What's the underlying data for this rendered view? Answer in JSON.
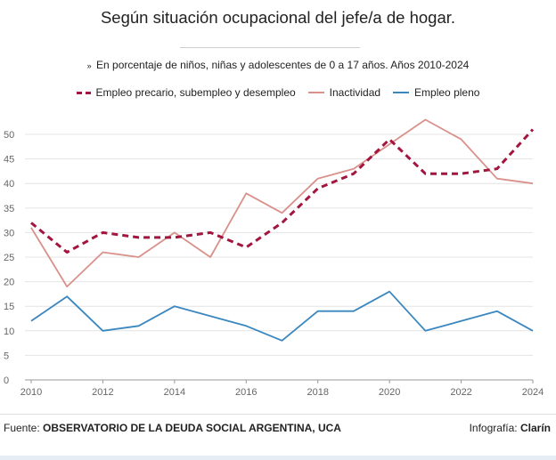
{
  "header": {
    "title": "Según situación ocupacional del jefe/a de hogar.",
    "subtitle_marker": "»",
    "subtitle": "En porcentaje de niños, niñas y adolescentes de 0 a 17 años. Años 2010-2024"
  },
  "footer": {
    "source_label": "Fuente:",
    "source_value": "OBSERVATORIO DE LA DEUDA SOCIAL ARGENTINA, UCA",
    "credit_label": "Infografía:",
    "credit_value": "Clarín"
  },
  "colors": {
    "precario": "#a3153f",
    "inactividad": "#d9918b",
    "pleno": "#3a87c0",
    "grid": "#e4e4e4",
    "axis": "#999999"
  },
  "chart_data": {
    "type": "line",
    "title": "Según situación ocupacional del jefe/a de hogar.",
    "subtitle": "En porcentaje de niños, niñas y adolescentes de 0 a 17 años. Años 2010-2024",
    "x": [
      2010,
      2011,
      2012,
      2013,
      2014,
      2015,
      2016,
      2017,
      2018,
      2019,
      2020,
      2021,
      2022,
      2023,
      2024
    ],
    "x_ticks": [
      2010,
      2012,
      2014,
      2016,
      2018,
      2020,
      2022,
      2024
    ],
    "y_ticks": [
      0,
      5,
      10,
      15,
      20,
      25,
      30,
      35,
      40,
      45,
      50
    ],
    "xlim": [
      2010,
      2024
    ],
    "ylim": [
      0,
      52
    ],
    "grid": "horizontal",
    "legend_position": "top",
    "series": [
      {
        "name": "Empleo precario, subempleo y desempleo",
        "style": "dashed",
        "values": [
          32,
          26,
          30,
          29,
          29,
          30,
          27,
          32,
          39,
          42,
          49,
          42,
          42,
          43,
          51
        ]
      },
      {
        "name": "Inactividad",
        "style": "solid",
        "values": [
          31,
          19,
          26,
          25,
          30,
          25,
          38,
          34,
          41,
          43,
          48,
          53,
          49,
          41,
          40
        ]
      },
      {
        "name": "Empleo pleno",
        "style": "solid",
        "values": [
          12,
          17,
          10,
          11,
          15,
          13,
          11,
          8,
          14,
          14,
          18,
          10,
          12,
          14,
          10
        ]
      }
    ]
  }
}
